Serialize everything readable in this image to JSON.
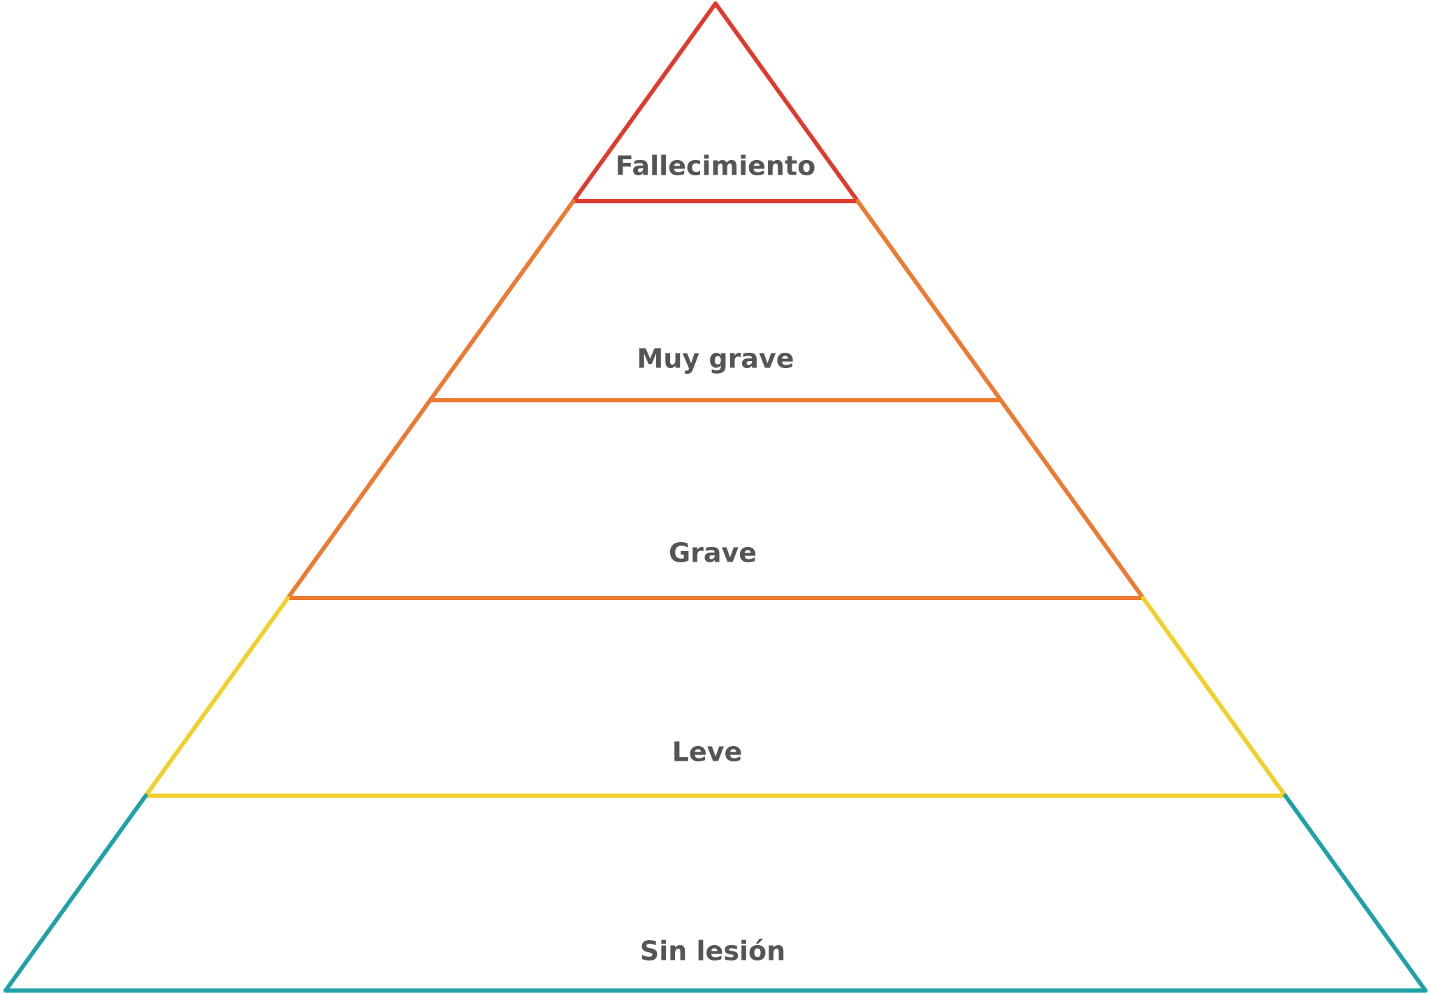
{
  "pyramid": {
    "levels": [
      {
        "label": "Fallecimiento",
        "color": "#e03a2f"
      },
      {
        "label": "Muy grave",
        "color": "#ec7a31"
      },
      {
        "label": "Grave",
        "color": "#ec7a31"
      },
      {
        "label": "Leve",
        "color": "#f2cf2a"
      },
      {
        "label": "Sin lesión",
        "color": "#1fa1a8"
      }
    ]
  }
}
